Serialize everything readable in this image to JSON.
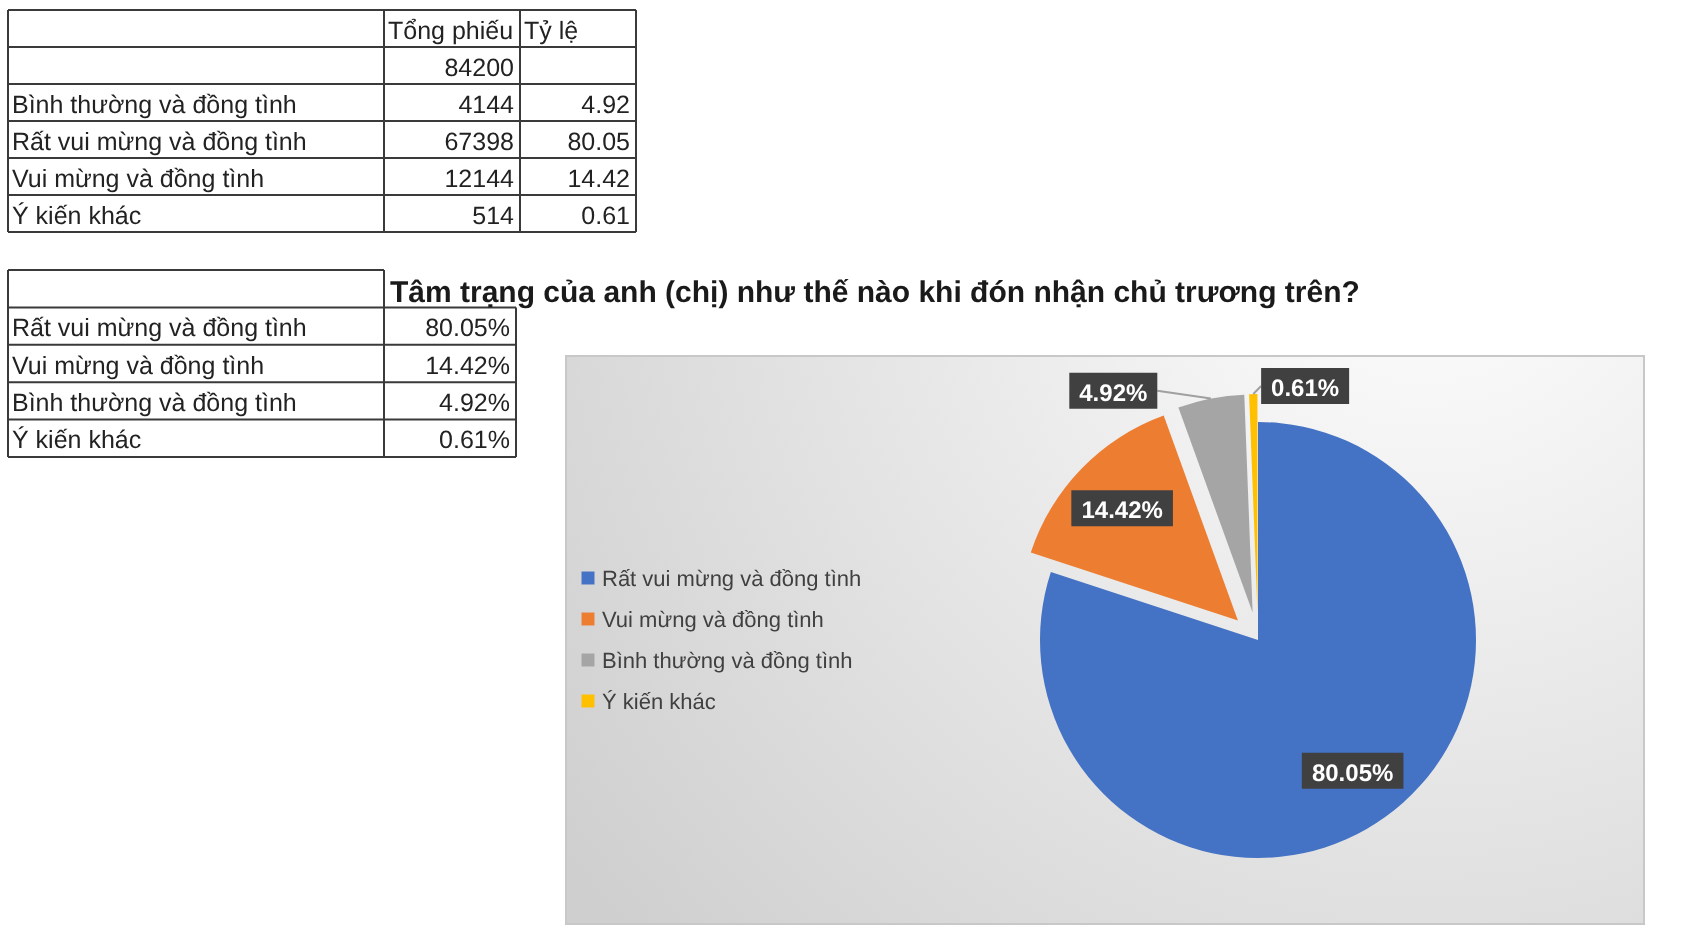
{
  "chart_data": {
    "type": "pie",
    "title": "Tâm trạng của anh (chị) như thế nào khi đón nhận chủ trương trên?",
    "categories": [
      "Rất vui mừng và đồng tình",
      "Vui mừng và đồng tình",
      "Bình thường và đồng tình",
      "Ý kiến khác"
    ],
    "values": [
      80.05,
      14.42,
      4.92,
      0.61
    ],
    "colors": [
      "#4472c4",
      "#ed7d31",
      "#a5a5a5",
      "#ffc000"
    ],
    "value_labels": [
      "80.05%",
      "14.42%",
      "4.92%",
      "0.61%"
    ],
    "legend": "left",
    "annotations": [
      "Tổng phiếu",
      "Tỷ lệ",
      "84200",
      "Bình thường và đồng tình",
      "4144",
      "4.92",
      "Rất vui mừng và đồng tình",
      "67398",
      "80.05",
      "Vui mừng và đồng tình",
      "12144",
      "14.42",
      "Ý kiến khác",
      "514",
      "0.61"
    ]
  }
}
